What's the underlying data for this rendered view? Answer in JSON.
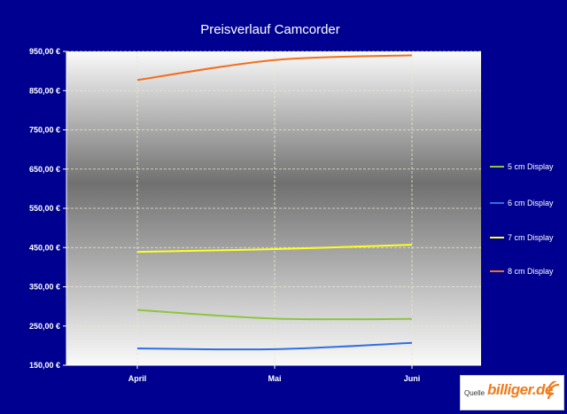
{
  "chart_data": {
    "type": "line",
    "title": "Preisverlauf Camcorder",
    "categories": [
      "April",
      "Mai",
      "Juni"
    ],
    "ylim": [
      150,
      950
    ],
    "y_ticks": [
      "150,00 €",
      "250,00 €",
      "350,00 €",
      "450,00 €",
      "550,00 €",
      "650,00 €",
      "750,00 €",
      "850,00 €",
      "950,00 €"
    ],
    "y_tick_values": [
      150,
      250,
      350,
      450,
      550,
      650,
      750,
      850,
      950
    ],
    "grid": true,
    "legend_position": "right",
    "series": [
      {
        "name": "5 cm Display",
        "color": "#8cc63f",
        "values": [
          291,
          269,
          268
        ]
      },
      {
        "name": "6 cm Display",
        "color": "#2f6fe0",
        "values": [
          193,
          191,
          207
        ]
      },
      {
        "name": "7 cm Display",
        "color": "#ffff20",
        "values": [
          439,
          446,
          457
        ]
      },
      {
        "name": "8 cm Display",
        "color": "#f07020",
        "values": [
          877,
          928,
          940
        ]
      }
    ]
  },
  "source": {
    "label": "Quelle",
    "brand": "billiger.de"
  }
}
